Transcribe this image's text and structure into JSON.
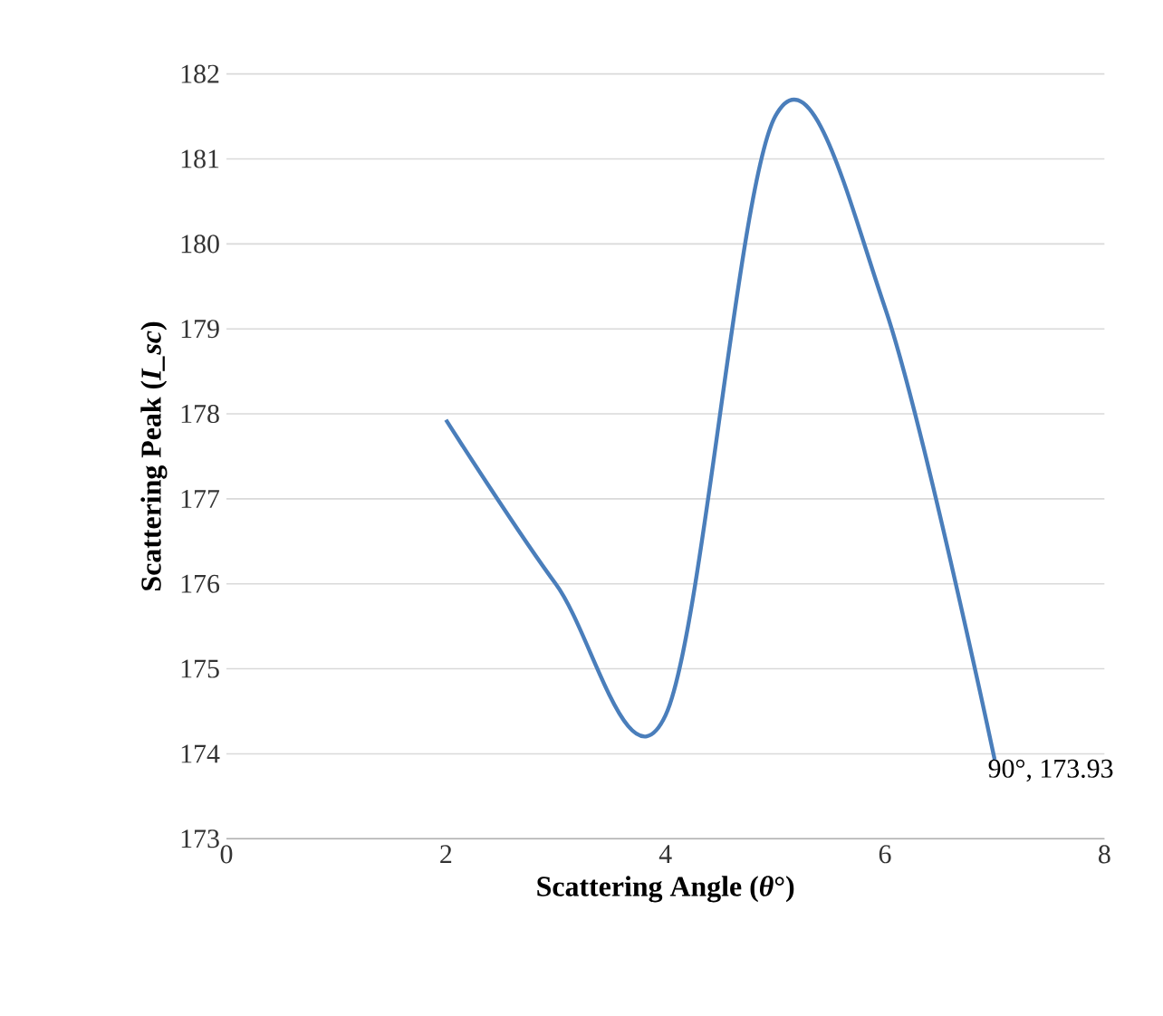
{
  "chart_data": {
    "type": "line",
    "xlabel": "Scattering Angle (*θ*°)",
    "ylabel": "Scattering Peak (*I_sc*)",
    "x": [
      2,
      3,
      4,
      5,
      6,
      7
    ],
    "series": [
      {
        "color": "#4a7ebb",
        "values": [
          177.93,
          176.0,
          174.45,
          181.5,
          179.25,
          173.93
        ]
      }
    ],
    "xlim": [
      0,
      8
    ],
    "xticks": [
      0,
      2,
      4,
      6,
      8
    ],
    "ylim": [
      173,
      182
    ],
    "yticks": [
      173,
      174,
      175,
      176,
      177,
      178,
      179,
      180,
      181,
      182
    ],
    "grid": "y",
    "marker": "none",
    "line_style": "solid",
    "annotations": [
      {
        "text": "90°, 173.93",
        "x": 7,
        "y": 173.93
      }
    ]
  }
}
